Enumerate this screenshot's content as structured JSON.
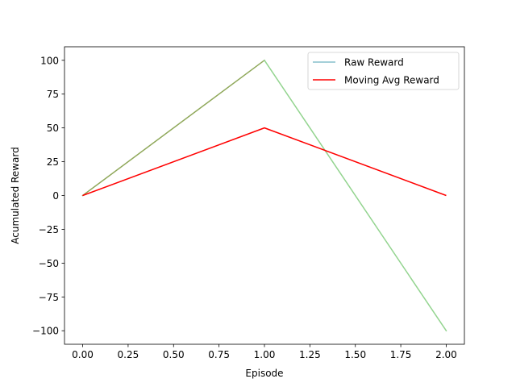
{
  "chart_data": {
    "type": "line",
    "title": "",
    "xlabel": "Episode",
    "ylabel": "Acumulated Reward",
    "xlim": [
      -0.1,
      2.1
    ],
    "ylim": [
      -110,
      110
    ],
    "xticks": [
      0.0,
      0.25,
      0.5,
      0.75,
      1.0,
      1.25,
      1.5,
      1.75,
      2.0
    ],
    "xtick_labels": [
      "0.00",
      "0.25",
      "0.50",
      "0.75",
      "1.00",
      "1.25",
      "1.50",
      "1.75",
      "2.00"
    ],
    "yticks": [
      100,
      75,
      50,
      25,
      0,
      -25,
      -50,
      -75,
      -100
    ],
    "ytick_labels": [
      "100",
      "75",
      "50",
      "25",
      "0",
      "−25",
      "−50",
      "−75",
      "−100"
    ],
    "grid": false,
    "legend_position": "top-right",
    "series": [
      {
        "name": "Raw Reward",
        "x": [
          0,
          1,
          2
        ],
        "y": [
          0,
          100,
          -100
        ],
        "segment_colors": [
          "#8fa85a",
          "#93d48f"
        ]
      },
      {
        "name": "Moving Avg Reward",
        "x": [
          0,
          1,
          2
        ],
        "y": [
          0,
          50,
          0
        ],
        "color": "#ff0000"
      }
    ],
    "legend_colors": [
      "#86bfcb",
      "#ff0000"
    ]
  }
}
